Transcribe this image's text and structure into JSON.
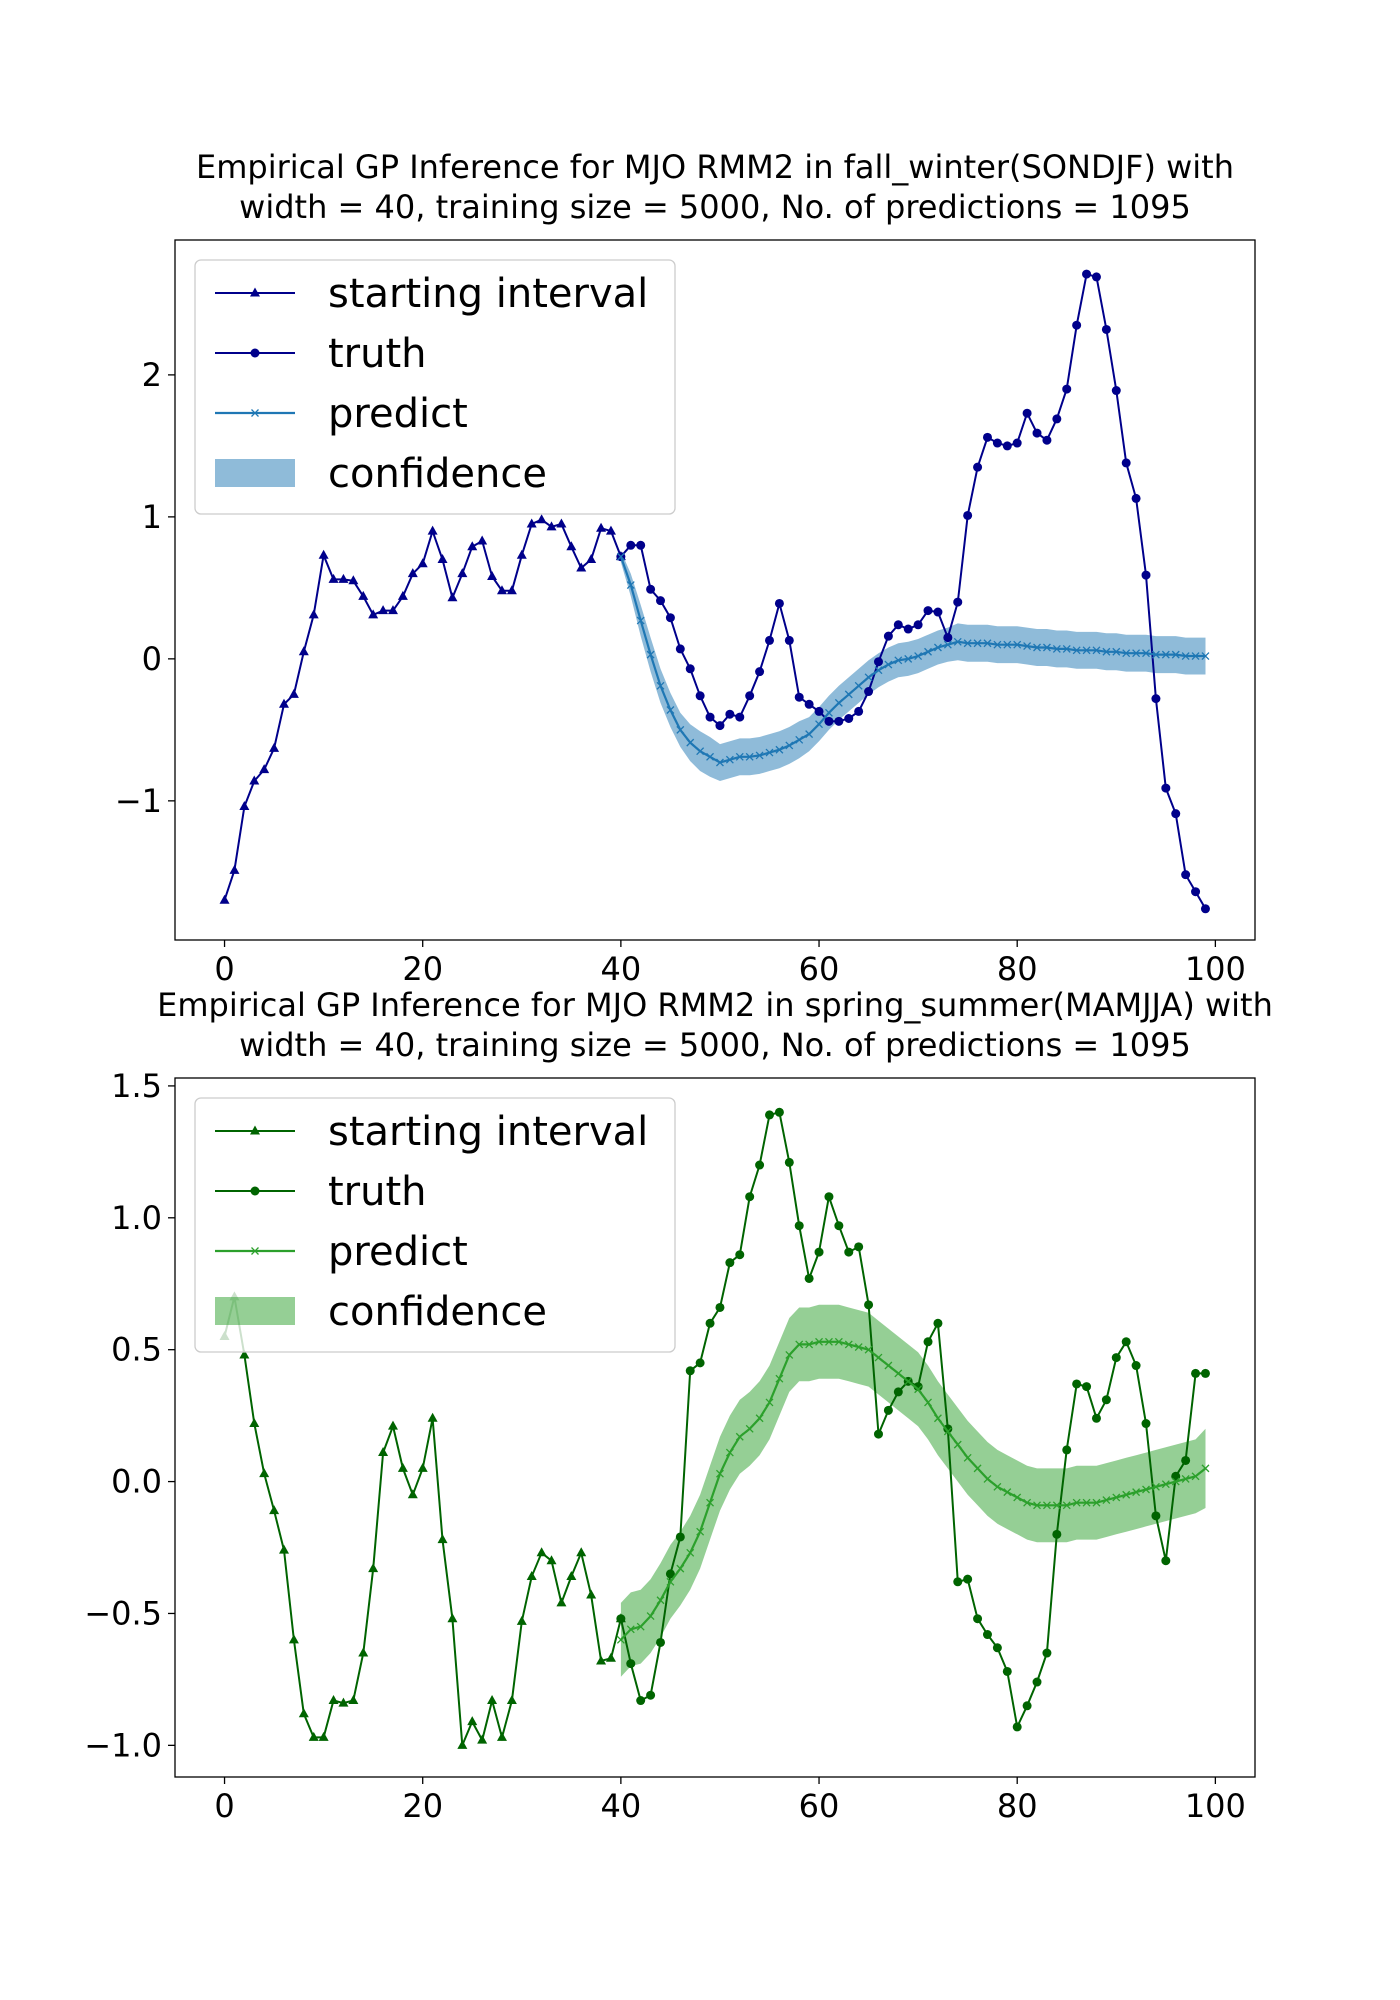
{
  "chart_data": [
    {
      "type": "line",
      "title": "Empirical GP Inference for MJO RMM2 in fall_winter(SONDJF) with\nwidth = 40, training size = 5000, No. of predictions = 1095",
      "xlabel": "",
      "ylabel": "",
      "xlim": [
        -5,
        104
      ],
      "ylim": [
        -1.98,
        2.95
      ],
      "xticks": [
        0,
        20,
        40,
        60,
        80,
        100
      ],
      "yticks": [
        -1,
        0,
        1,
        2
      ],
      "ytick_labels": [
        "−1",
        "0",
        "1",
        "2"
      ],
      "legend_position": "upper left",
      "legend": [
        "starting interval",
        "truth",
        "predict",
        "confidence"
      ],
      "colors": {
        "starting": "#00008b",
        "truth": "#00008b",
        "predict": "#1f77b4",
        "confidence": "#1f77b4"
      },
      "series": [
        {
          "name": "starting interval",
          "marker": "triangle",
          "x": [
            0,
            1,
            2,
            3,
            4,
            5,
            6,
            7,
            8,
            9,
            10,
            11,
            12,
            13,
            14,
            15,
            16,
            17,
            18,
            19,
            20,
            21,
            22,
            23,
            24,
            25,
            26,
            27,
            28,
            29,
            30,
            31,
            32,
            33,
            34,
            35,
            36,
            37,
            38,
            39,
            40
          ],
          "y": [
            -1.7,
            -1.49,
            -1.04,
            -0.86,
            -0.78,
            -0.63,
            -0.32,
            -0.25,
            0.05,
            0.31,
            0.73,
            0.56,
            0.56,
            0.55,
            0.44,
            0.31,
            0.34,
            0.34,
            0.44,
            0.6,
            0.67,
            0.9,
            0.7,
            0.43,
            0.6,
            0.79,
            0.83,
            0.58,
            0.48,
            0.48,
            0.73,
            0.95,
            0.98,
            0.93,
            0.95,
            0.79,
            0.64,
            0.7,
            0.92,
            0.9,
            0.72
          ]
        },
        {
          "name": "truth",
          "marker": "circle",
          "x": [
            40,
            41,
            42,
            43,
            44,
            45,
            46,
            47,
            48,
            49,
            50,
            51,
            52,
            53,
            54,
            55,
            56,
            57,
            58,
            59,
            60,
            61,
            62,
            63,
            64,
            65,
            66,
            67,
            68,
            69,
            70,
            71,
            72,
            73,
            74,
            75,
            76,
            77,
            78,
            79,
            80,
            81,
            82,
            83,
            84,
            85,
            86,
            87,
            88,
            89,
            90,
            91,
            92,
            93,
            94,
            95,
            96,
            97,
            98,
            99
          ],
          "y": [
            0.72,
            0.8,
            0.8,
            0.49,
            0.41,
            0.29,
            0.07,
            -0.07,
            -0.26,
            -0.41,
            -0.47,
            -0.39,
            -0.41,
            -0.26,
            -0.09,
            0.13,
            0.39,
            0.13,
            -0.27,
            -0.32,
            -0.37,
            -0.44,
            -0.44,
            -0.42,
            -0.37,
            -0.23,
            -0.02,
            0.16,
            0.24,
            0.21,
            0.24,
            0.34,
            0.33,
            0.15,
            0.4,
            1.01,
            1.35,
            1.56,
            1.52,
            1.5,
            1.52,
            1.73,
            1.59,
            1.54,
            1.69,
            1.9,
            2.35,
            2.71,
            2.69,
            2.32,
            1.89,
            1.38,
            1.13,
            0.59,
            -0.28,
            -0.91,
            -1.09,
            -1.52,
            -1.64,
            -1.76
          ]
        },
        {
          "name": "predict",
          "marker": "x",
          "x": [
            40,
            41,
            42,
            43,
            44,
            45,
            46,
            47,
            48,
            49,
            50,
            51,
            52,
            53,
            54,
            55,
            56,
            57,
            58,
            59,
            60,
            61,
            62,
            63,
            64,
            65,
            66,
            67,
            68,
            69,
            70,
            71,
            72,
            73,
            74,
            75,
            76,
            77,
            78,
            79,
            80,
            81,
            82,
            83,
            84,
            85,
            86,
            87,
            88,
            89,
            90,
            91,
            92,
            93,
            94,
            95,
            96,
            97,
            98,
            99
          ],
          "y": [
            0.72,
            0.52,
            0.27,
            0.03,
            -0.19,
            -0.36,
            -0.5,
            -0.59,
            -0.65,
            -0.69,
            -0.73,
            -0.71,
            -0.69,
            -0.69,
            -0.68,
            -0.66,
            -0.64,
            -0.61,
            -0.57,
            -0.53,
            -0.46,
            -0.38,
            -0.31,
            -0.25,
            -0.19,
            -0.13,
            -0.08,
            -0.04,
            -0.01,
            0.0,
            0.02,
            0.05,
            0.08,
            0.1,
            0.12,
            0.11,
            0.11,
            0.11,
            0.1,
            0.1,
            0.1,
            0.09,
            0.08,
            0.08,
            0.07,
            0.07,
            0.06,
            0.06,
            0.06,
            0.05,
            0.05,
            0.04,
            0.04,
            0.04,
            0.03,
            0.03,
            0.03,
            0.02,
            0.02,
            0.02
          ],
          "lower": [
            0.68,
            0.44,
            0.16,
            -0.09,
            -0.31,
            -0.48,
            -0.62,
            -0.72,
            -0.79,
            -0.83,
            -0.86,
            -0.84,
            -0.82,
            -0.82,
            -0.81,
            -0.79,
            -0.77,
            -0.74,
            -0.7,
            -0.65,
            -0.58,
            -0.5,
            -0.43,
            -0.37,
            -0.31,
            -0.25,
            -0.2,
            -0.16,
            -0.13,
            -0.12,
            -0.1,
            -0.07,
            -0.04,
            -0.02,
            -0.01,
            -0.02,
            -0.02,
            -0.02,
            -0.03,
            -0.03,
            -0.03,
            -0.04,
            -0.05,
            -0.05,
            -0.06,
            -0.06,
            -0.07,
            -0.07,
            -0.07,
            -0.08,
            -0.08,
            -0.09,
            -0.09,
            -0.09,
            -0.1,
            -0.1,
            -0.1,
            -0.11,
            -0.11,
            -0.11
          ],
          "upper": [
            0.76,
            0.6,
            0.38,
            0.15,
            -0.07,
            -0.24,
            -0.38,
            -0.46,
            -0.51,
            -0.55,
            -0.6,
            -0.58,
            -0.56,
            -0.56,
            -0.55,
            -0.53,
            -0.51,
            -0.48,
            -0.44,
            -0.41,
            -0.34,
            -0.26,
            -0.19,
            -0.13,
            -0.07,
            -0.01,
            0.04,
            0.08,
            0.11,
            0.12,
            0.14,
            0.17,
            0.2,
            0.22,
            0.25,
            0.24,
            0.24,
            0.24,
            0.23,
            0.23,
            0.23,
            0.22,
            0.21,
            0.21,
            0.2,
            0.2,
            0.19,
            0.19,
            0.19,
            0.18,
            0.18,
            0.17,
            0.17,
            0.17,
            0.16,
            0.16,
            0.16,
            0.15,
            0.15,
            0.15
          ]
        }
      ]
    },
    {
      "type": "line",
      "title": "Empirical GP Inference for MJO RMM2 in spring_summer(MAMJJA) with\nwidth = 40, training size = 5000, No. of predictions = 1095",
      "xlabel": "",
      "ylabel": "",
      "xlim": [
        -5,
        104
      ],
      "ylim": [
        -1.12,
        1.53
      ],
      "xticks": [
        0,
        20,
        40,
        60,
        80,
        100
      ],
      "yticks": [
        -1.0,
        -0.5,
        0.0,
        0.5,
        1.0,
        1.5
      ],
      "ytick_labels": [
        "−1.0",
        "−0.5",
        "0.0",
        "0.5",
        "1.0",
        "1.5"
      ],
      "legend_position": "upper left",
      "legend": [
        "starting interval",
        "truth",
        "predict",
        "confidence"
      ],
      "colors": {
        "starting": "#006400",
        "truth": "#006400",
        "predict": "#2ca02c",
        "confidence": "#2ca02c"
      },
      "series": [
        {
          "name": "starting interval",
          "marker": "triangle",
          "x": [
            0,
            1,
            2,
            3,
            4,
            5,
            6,
            7,
            8,
            9,
            10,
            11,
            12,
            13,
            14,
            15,
            16,
            17,
            18,
            19,
            20,
            21,
            22,
            23,
            24,
            25,
            26,
            27,
            28,
            29,
            30,
            31,
            32,
            33,
            34,
            35,
            36,
            37,
            38,
            39,
            40
          ],
          "y": [
            0.55,
            0.7,
            0.48,
            0.22,
            0.03,
            -0.11,
            -0.26,
            -0.6,
            -0.88,
            -0.97,
            -0.97,
            -0.83,
            -0.84,
            -0.83,
            -0.65,
            -0.33,
            0.11,
            0.21,
            0.05,
            -0.05,
            0.05,
            0.24,
            -0.22,
            -0.52,
            -1.0,
            -0.91,
            -0.98,
            -0.83,
            -0.97,
            -0.83,
            -0.53,
            -0.36,
            -0.27,
            -0.3,
            -0.46,
            -0.36,
            -0.27,
            -0.43,
            -0.68,
            -0.67,
            -0.52
          ]
        },
        {
          "name": "truth",
          "marker": "circle",
          "x": [
            40,
            41,
            42,
            43,
            44,
            45,
            46,
            47,
            48,
            49,
            50,
            51,
            52,
            53,
            54,
            55,
            56,
            57,
            58,
            59,
            60,
            61,
            62,
            63,
            64,
            65,
            66,
            67,
            68,
            69,
            70,
            71,
            72,
            73,
            74,
            75,
            76,
            77,
            78,
            79,
            80,
            81,
            82,
            83,
            84,
            85,
            86,
            87,
            88,
            89,
            90,
            91,
            92,
            93,
            94,
            95,
            96,
            97,
            98,
            99
          ],
          "y": [
            -0.52,
            -0.69,
            -0.83,
            -0.81,
            -0.61,
            -0.35,
            -0.21,
            0.42,
            0.45,
            0.6,
            0.66,
            0.83,
            0.86,
            1.08,
            1.2,
            1.39,
            1.4,
            1.21,
            0.97,
            0.77,
            0.87,
            1.08,
            0.97,
            0.87,
            0.89,
            0.67,
            0.18,
            0.27,
            0.34,
            0.38,
            0.36,
            0.53,
            0.6,
            0.2,
            -0.38,
            -0.37,
            -0.52,
            -0.58,
            -0.63,
            -0.72,
            -0.93,
            -0.85,
            -0.76,
            -0.65,
            -0.2,
            0.12,
            0.37,
            0.36,
            0.24,
            0.31,
            0.47,
            0.53,
            0.44,
            0.22,
            -0.13,
            -0.3,
            0.02,
            0.08,
            0.41,
            0.41
          ]
        },
        {
          "name": "predict",
          "marker": "x",
          "x": [
            40,
            41,
            42,
            43,
            44,
            45,
            46,
            47,
            48,
            49,
            50,
            51,
            52,
            53,
            54,
            55,
            56,
            57,
            58,
            59,
            60,
            61,
            62,
            63,
            64,
            65,
            66,
            67,
            68,
            69,
            70,
            71,
            72,
            73,
            74,
            75,
            76,
            77,
            78,
            79,
            80,
            81,
            82,
            83,
            84,
            85,
            86,
            87,
            88,
            89,
            90,
            91,
            92,
            93,
            94,
            95,
            96,
            97,
            98,
            99
          ],
          "y": [
            -0.6,
            -0.56,
            -0.55,
            -0.51,
            -0.45,
            -0.38,
            -0.33,
            -0.27,
            -0.19,
            -0.08,
            0.03,
            0.11,
            0.17,
            0.2,
            0.24,
            0.3,
            0.39,
            0.48,
            0.52,
            0.52,
            0.53,
            0.53,
            0.53,
            0.52,
            0.51,
            0.5,
            0.47,
            0.44,
            0.41,
            0.38,
            0.35,
            0.3,
            0.24,
            0.19,
            0.14,
            0.09,
            0.05,
            0.01,
            -0.02,
            -0.04,
            -0.06,
            -0.08,
            -0.09,
            -0.09,
            -0.09,
            -0.09,
            -0.08,
            -0.08,
            -0.08,
            -0.07,
            -0.06,
            -0.05,
            -0.04,
            -0.03,
            -0.02,
            -0.01,
            0.0,
            0.01,
            0.02,
            0.05
          ],
          "lower": [
            -0.74,
            -0.7,
            -0.69,
            -0.65,
            -0.59,
            -0.52,
            -0.47,
            -0.41,
            -0.33,
            -0.22,
            -0.11,
            -0.03,
            0.03,
            0.06,
            0.1,
            0.16,
            0.25,
            0.34,
            0.38,
            0.38,
            0.39,
            0.39,
            0.39,
            0.38,
            0.37,
            0.36,
            0.33,
            0.3,
            0.27,
            0.24,
            0.21,
            0.16,
            0.1,
            0.05,
            0.0,
            -0.05,
            -0.09,
            -0.13,
            -0.16,
            -0.18,
            -0.2,
            -0.22,
            -0.23,
            -0.23,
            -0.23,
            -0.23,
            -0.22,
            -0.22,
            -0.22,
            -0.21,
            -0.2,
            -0.19,
            -0.18,
            -0.17,
            -0.16,
            -0.15,
            -0.14,
            -0.13,
            -0.12,
            -0.1
          ],
          "upper": [
            -0.46,
            -0.42,
            -0.41,
            -0.37,
            -0.31,
            -0.24,
            -0.19,
            -0.13,
            -0.05,
            0.06,
            0.17,
            0.25,
            0.31,
            0.34,
            0.38,
            0.44,
            0.53,
            0.62,
            0.66,
            0.66,
            0.67,
            0.67,
            0.67,
            0.66,
            0.65,
            0.64,
            0.61,
            0.58,
            0.55,
            0.52,
            0.49,
            0.44,
            0.38,
            0.33,
            0.28,
            0.23,
            0.19,
            0.15,
            0.12,
            0.1,
            0.08,
            0.06,
            0.05,
            0.05,
            0.05,
            0.05,
            0.06,
            0.06,
            0.06,
            0.07,
            0.08,
            0.09,
            0.1,
            0.11,
            0.12,
            0.13,
            0.14,
            0.15,
            0.16,
            0.2
          ]
        }
      ]
    }
  ]
}
